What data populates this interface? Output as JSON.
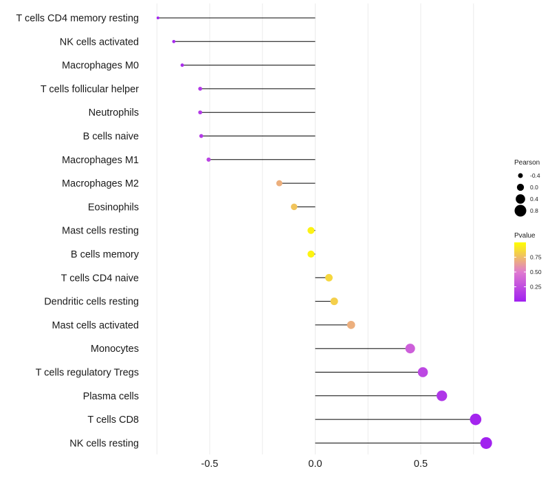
{
  "chart_data": {
    "type": "lollipop",
    "title": "",
    "xlabel": "",
    "ylabel": "",
    "xlim": [
      -0.82,
      0.87
    ],
    "x_ticks": [
      -0.5,
      0.0,
      0.5
    ],
    "x_tick_labels": [
      "-0.5",
      "0.0",
      "0.5"
    ],
    "grid": true,
    "legend_position": "right",
    "colors": {
      "low": "#a020f0",
      "mid": "#e07ad0",
      "high": "#ffff00",
      "stem": "#000000",
      "grid": "#ebebeb"
    },
    "categories": [
      "T cells CD4 memory resting",
      "NK cells activated",
      "Macrophages M0",
      "T cells follicular helper",
      "Neutrophils",
      "B cells naive",
      "Macrophages M1",
      "Macrophages M2",
      "Eosinophils",
      "Mast cells resting",
      "B cells memory",
      "T cells CD4 naive",
      "Dendritic cells resting",
      "Mast cells activated",
      "Monocytes",
      "T cells regulatory  Tregs ",
      "Plasma cells",
      "T cells CD8",
      "NK cells resting"
    ],
    "pearson": [
      -0.745,
      -0.67,
      -0.63,
      -0.545,
      -0.545,
      -0.54,
      -0.505,
      -0.17,
      -0.1,
      -0.02,
      -0.02,
      0.065,
      0.09,
      0.17,
      0.45,
      0.51,
      0.6,
      0.76,
      0.81
    ],
    "pvalue": [
      0.02,
      0.05,
      0.08,
      0.14,
      0.15,
      0.15,
      0.2,
      0.7,
      0.78,
      0.95,
      0.96,
      0.85,
      0.82,
      0.7,
      0.35,
      0.22,
      0.12,
      0.03,
      0.01
    ],
    "legend": {
      "size_title": "Pearson",
      "size_values": [
        -0.4,
        0.0,
        0.4,
        0.8
      ],
      "size_labels": [
        "-0.4",
        "0.0",
        "0.4",
        "0.8"
      ],
      "color_title": "Pvalue",
      "color_ticks": [
        0.75,
        0.5,
        0.25
      ],
      "color_labels": [
        "0.75",
        "0.50",
        "0.25"
      ],
      "color_range": [
        0.0,
        1.0
      ]
    }
  }
}
